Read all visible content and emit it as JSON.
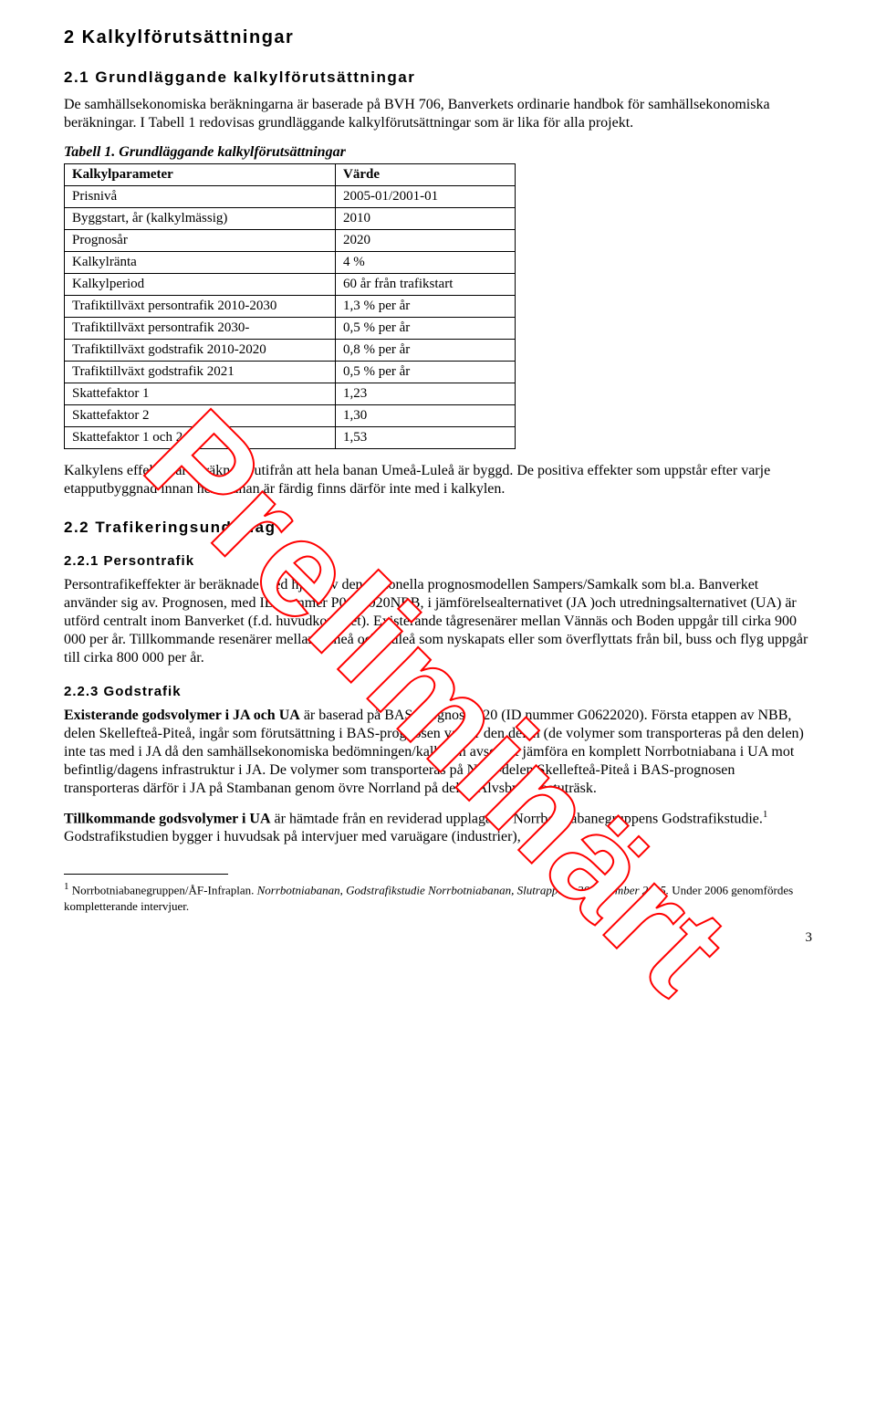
{
  "watermark": "Preliminärt",
  "h1": "2 Kalkylförutsättningar",
  "s21": {
    "heading": "2.1 Grundläggande kalkylförutsättningar",
    "p1": "De samhällsekonomiska beräkningarna är baserade på BVH 706, Banverkets ordinarie handbok för samhällsekonomiska beräkningar. I Tabell 1 redovisas grundläggande kalkylförutsättningar som är lika för alla projekt.",
    "table_label": "Tabell 1. Grundläggande kalkylförutsättningar",
    "th_param": "Kalkylparameter",
    "th_value": "Värde",
    "rows": [
      {
        "param": "Prisnivå",
        "value": "2005-01/2001-01"
      },
      {
        "param": "Byggstart, år (kalkylmässig)",
        "value": "2010"
      },
      {
        "param": "Prognosår",
        "value": "2020"
      },
      {
        "param": "Kalkylränta",
        "value": "4 %"
      },
      {
        "param": "Kalkylperiod",
        "value": "60 år från trafikstart"
      },
      {
        "param": "Trafiktillväxt persontrafik 2010-2030",
        "value": "1,3 % per år"
      },
      {
        "param": "Trafiktillväxt persontrafik 2030-",
        "value": "0,5 % per år"
      },
      {
        "param": "Trafiktillväxt godstrafik 2010-2020",
        "value": "0,8 % per år"
      },
      {
        "param": "Trafiktillväxt godstrafik 2021",
        "value": "0,5 % per år"
      },
      {
        "param": "Skattefaktor 1",
        "value": "1,23"
      },
      {
        "param": "Skattefaktor 2",
        "value": "1,30"
      },
      {
        "param": "Skattefaktor 1 och 2",
        "value": "1,53"
      }
    ],
    "p2": "Kalkylens effekter är beräknade utifrån att hela banan Umeå-Luleå är byggd. De positiva effekter som uppstår efter varje etapputbyggnad innan hela banan är färdig finns därför inte med i kalkylen."
  },
  "s22": {
    "heading": "2.2 Trafikeringsunderlag",
    "s221": {
      "heading": "2.2.1 Persontrafik",
      "p": "Persontrafikeffekter är beräknade med hjälp av den nationella prognosmodellen Sampers/Samkalk som bl.a. Banverket använder sig av. Prognosen, med ID nummer P0642020NBB, i jämförelsealternativet (JA )och utredningsalternativet (UA) är utförd centralt inom Banverket (f.d. huvudkontoret). Existerande tågresenärer mellan Vännäs och Boden uppgår till cirka 900 000 per år. Tillkommande resenärer mellan Umeå och Luleå som nyskapats eller som överflyttats från bil, buss och flyg uppgår till cirka 800 000 per år."
    },
    "s223": {
      "heading": "2.2.3 Godstrafik",
      "p1_bold": "Existerande godsvolymer i JA och UA",
      "p1_rest": " är baserad på BAS-prognos 2020 (ID nummer G0622020). Första etappen av NBB, delen Skellefteå-Piteå, ingår som förutsättning i BAS-prognosen varför den delen (de volymer som transporteras på den delen) inte tas med i JA då den samhällsekonomiska bedömningen/kalkylen avser att jämföra en komplett Norrbotniabana i UA mot befintlig/dagens infrastruktur i JA. De volymer som transporteras på NBB-delen Skellefteå-Piteå i BAS-prognosen transporteras därför i JA på Stambanan genom övre Norrland på delen Älvsbyn-Bastuträsk.",
      "p2_bold": "Tillkommande godsvolymer i UA",
      "p2_rest": " är hämtade från en reviderad upplaga av Norrbotniabanegruppens Godstrafikstudie.",
      "p2_after_sup": " Godstrafikstudien bygger i huvudsak på intervjuer med varuägare (industrier),"
    }
  },
  "footnote": {
    "marker": "1",
    "lead": " Norrbotniabanegruppen/ÅF-Infraplan. ",
    "ital": "Norrbotniabanan, Godstrafikstudie Norrbotniabanan, Slutrapport, 30 november 2005.",
    "rest": " Under 2006 genomfördes kompletterande intervjuer."
  },
  "page_num": "3"
}
